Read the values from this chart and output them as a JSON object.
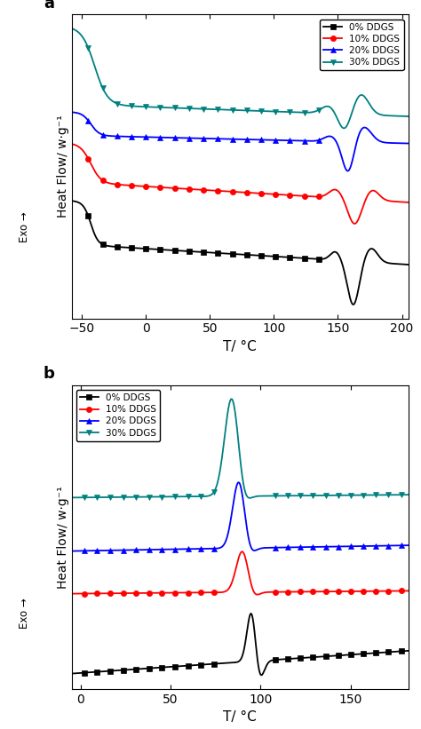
{
  "panel_a": {
    "xlim": [
      -58,
      205
    ],
    "xticks": [
      -50,
      0,
      50,
      100,
      150,
      200
    ],
    "xlabel": "T/ °C",
    "ylabel": "Heat Flow/ w·g⁻¹",
    "label": "a"
  },
  "panel_b": {
    "xlim": [
      -5,
      182
    ],
    "xticks": [
      0,
      50,
      100,
      150
    ],
    "xlabel": "T/ °C",
    "ylabel": "Heat Flow/ w·g⁻¹",
    "label": "b"
  },
  "colors": [
    "black",
    "red",
    "blue",
    "#008080"
  ],
  "series_labels": [
    "0% DDGS",
    "10% DDGS",
    "20% DDGS",
    "30% DDGS"
  ],
  "markers": [
    "s",
    "o",
    "^",
    "v"
  ],
  "exo_label": "Exo →",
  "fig_width": 4.74,
  "fig_height": 8.21
}
